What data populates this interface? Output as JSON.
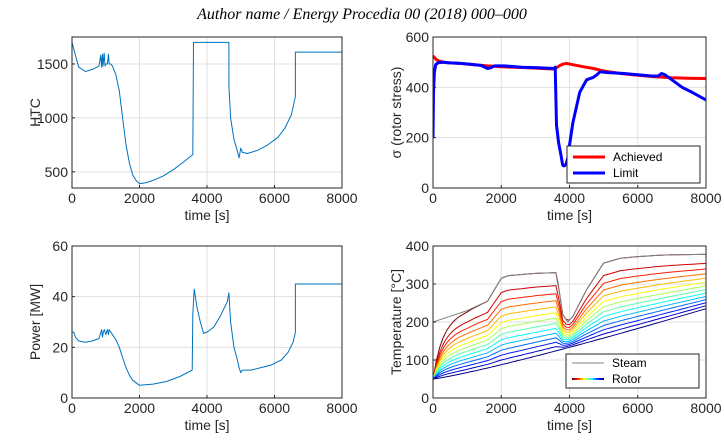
{
  "header": "Author name / Energy Procedia 00 (2018) 000–000",
  "chart_data": [
    {
      "type": "line",
      "panel": "top-left",
      "xlabel": "time [s]",
      "ylabel": "HTC",
      "xlim": [
        0,
        8000
      ],
      "ylim": [
        350,
        1750
      ],
      "xticks": [
        0,
        2000,
        4000,
        6000,
        8000
      ],
      "yticks": [
        500,
        1000,
        1500
      ],
      "grid": true,
      "series": [
        {
          "color": "#0072bd",
          "x": [
            0,
            100,
            200,
            400,
            600,
            800,
            850,
            880,
            900,
            920,
            950,
            980,
            1000,
            1050,
            1080,
            1100,
            1150,
            1200,
            1300,
            1400,
            1500,
            1600,
            1700,
            1800,
            1900,
            2000,
            2200,
            2400,
            2700,
            3000,
            3300,
            3580,
            3580,
            3600,
            4650,
            4650,
            4700,
            4800,
            4900,
            4950,
            5000,
            5050,
            5200,
            5500,
            5800,
            6100,
            6300,
            6500,
            6620,
            6620,
            8000
          ],
          "y": [
            1700,
            1580,
            1470,
            1430,
            1450,
            1480,
            1580,
            1470,
            1590,
            1480,
            1600,
            1480,
            1500,
            1500,
            1590,
            1500,
            1500,
            1480,
            1400,
            1250,
            1000,
            750,
            580,
            470,
            420,
            390,
            400,
            420,
            460,
            520,
            590,
            660,
            660,
            1700,
            1700,
            1300,
            1000,
            800,
            690,
            630,
            720,
            680,
            670,
            700,
            750,
            820,
            900,
            1030,
            1200,
            1610,
            1610
          ]
        }
      ]
    },
    {
      "type": "line",
      "panel": "top-right",
      "xlabel": "time [s]",
      "ylabel": "σ (rotor stress)",
      "xlim": [
        0,
        8000
      ],
      "ylim": [
        0,
        600
      ],
      "xticks": [
        0,
        2000,
        4000,
        6000,
        8000
      ],
      "yticks": [
        0,
        200,
        400,
        600
      ],
      "grid": true,
      "legend": "bottom-right",
      "series": [
        {
          "name": "Achieved",
          "color": "#ff0000",
          "x": [
            0,
            100,
            200,
            400,
            800,
            1200,
            1600,
            2000,
            2400,
            2800,
            3200,
            3550,
            3700,
            3800,
            3900,
            4100,
            4400,
            4700,
            5000,
            5500,
            6000,
            6500,
            7000,
            7500,
            8000
          ],
          "y": [
            525,
            510,
            503,
            498,
            495,
            490,
            485,
            482,
            480,
            478,
            475,
            473,
            485,
            492,
            495,
            490,
            482,
            475,
            465,
            455,
            448,
            442,
            438,
            436,
            435
          ]
        },
        {
          "name": "Limit",
          "color": "#0000ff",
          "x": [
            0,
            15,
            40,
            80,
            150,
            300,
            500,
            800,
            1100,
            1400,
            1600,
            1700,
            1800,
            2100,
            2600,
            3100,
            3550,
            3580,
            3620,
            3680,
            3750,
            3800,
            3850,
            3900,
            3950,
            4000,
            4100,
            4300,
            4500,
            4700,
            4800,
            4900,
            5000,
            5200,
            5600,
            6000,
            6400,
            6600,
            6700,
            6800,
            7000,
            7300,
            7600,
            8000
          ],
          "y": [
            200,
            380,
            460,
            490,
            498,
            500,
            497,
            495,
            492,
            487,
            475,
            478,
            485,
            485,
            480,
            478,
            475,
            480,
            250,
            180,
            130,
            90,
            88,
            95,
            120,
            170,
            260,
            380,
            430,
            440,
            450,
            462,
            460,
            458,
            455,
            450,
            445,
            445,
            455,
            450,
            430,
            400,
            380,
            350
          ]
        }
      ]
    },
    {
      "type": "line",
      "panel": "bottom-left",
      "xlabel": "time [s]",
      "ylabel": "Power [MW]",
      "xlim": [
        0,
        8000
      ],
      "ylim": [
        0,
        60
      ],
      "xticks": [
        0,
        2000,
        4000,
        6000,
        8000
      ],
      "yticks": [
        0,
        20,
        40,
        60
      ],
      "grid": true,
      "series": [
        {
          "color": "#0072bd",
          "x": [
            0,
            50,
            100,
            200,
            400,
            600,
            800,
            880,
            900,
            930,
            960,
            1000,
            1050,
            1080,
            1100,
            1150,
            1200,
            1300,
            1400,
            1500,
            1600,
            1700,
            1800,
            1900,
            2000,
            2400,
            2800,
            3200,
            3560,
            3580,
            3620,
            3700,
            3800,
            3900,
            4000,
            4200,
            4400,
            4600,
            4650,
            4700,
            4800,
            4900,
            4950,
            5000,
            5050,
            5100,
            5300,
            5600,
            5900,
            6200,
            6400,
            6550,
            6620,
            6620,
            8000
          ],
          "y": [
            26,
            26,
            24,
            22.5,
            22,
            22.5,
            23.5,
            27,
            24,
            26,
            27,
            25,
            27,
            25,
            27,
            26,
            25,
            23,
            20,
            16,
            12,
            9,
            7,
            6,
            5,
            5.5,
            6.5,
            8.5,
            11,
            33,
            43,
            36,
            30,
            25.5,
            26,
            28,
            32.5,
            38,
            41.5,
            30,
            20,
            15,
            12,
            10,
            11,
            11,
            11,
            12,
            13,
            15,
            18,
            22,
            26,
            45,
            45
          ]
        }
      ]
    },
    {
      "type": "line",
      "panel": "bottom-right",
      "xlabel": "time [s]",
      "ylabel": "Temperature [°C]",
      "xlim": [
        0,
        8000
      ],
      "ylim": [
        0,
        400
      ],
      "xticks": [
        0,
        2000,
        4000,
        6000,
        8000
      ],
      "yticks": [
        0,
        100,
        200,
        300,
        400
      ],
      "grid": true,
      "legend": "bottom-right",
      "legend_entries": [
        "Steam",
        "Rotor"
      ],
      "steam": {
        "name": "Steam",
        "color": "#808080",
        "x": [
          0,
          500,
          1000,
          1600,
          2000,
          2200,
          3000,
          3600,
          3650,
          3800,
          3950,
          4100,
          4500,
          5000,
          5500,
          6000,
          6500,
          7000,
          8000
        ],
        "y": [
          200,
          215,
          230,
          255,
          315,
          322,
          328,
          330,
          310,
          220,
          200,
          215,
          285,
          355,
          368,
          372,
          375,
          377,
          378
        ]
      },
      "rotor": {
        "name": "Rotor",
        "colormap": "jet",
        "layers": 14,
        "outer": 365,
        "inner_end": 235,
        "start": 50
      }
    }
  ]
}
